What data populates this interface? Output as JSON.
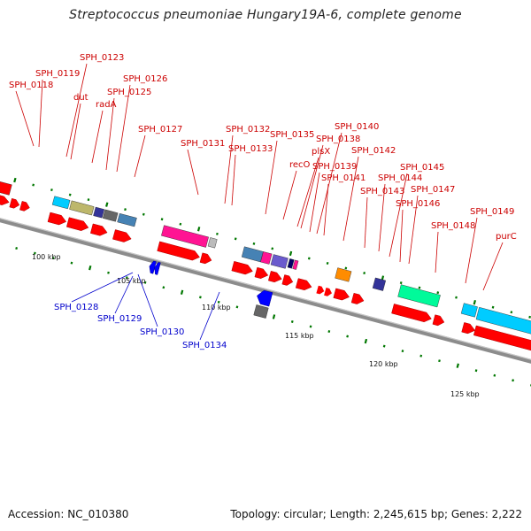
{
  "title": "Streptococcus pneumoniae Hungary19A-6, complete genome",
  "footer": {
    "accession": "Accession: NC_010380",
    "summary": "Topology: circular; Length: 2,245,615 bp; Genes: 2,222"
  },
  "colors": {
    "forward_label": "#cc0000",
    "reverse_label": "#0000cc",
    "cds_forward": "#ff0000",
    "cds_reverse": "#0000ff",
    "backbone": "#8c8c8c",
    "tick": "#007700"
  },
  "scale_labels": [
    "100 kbp",
    "105 kbp",
    "110 kbp",
    "115 kbp",
    "120 kbp",
    "125 kbp"
  ],
  "forward_labels": [
    "SPH_0118",
    "SPH_0119",
    "SPH_0123",
    "dut",
    "radA",
    "SPH_0125",
    "SPH_0126",
    "SPH_0127",
    "SPH_0131",
    "SPH_0132",
    "SPH_0133",
    "SPH_0135",
    "recO",
    "plsX",
    "SPH_0138",
    "SPH_0139",
    "SPH_0140",
    "SPH_0141",
    "SPH_0142",
    "SPH_0143",
    "SPH_0144",
    "SPH_0145",
    "SPH_0146",
    "SPH_0147",
    "SPH_0148",
    "SPH_0149",
    "purC"
  ],
  "reverse_labels": [
    "SPH_0128",
    "SPH_0129",
    "SPH_0130",
    "SPH_0134"
  ]
}
